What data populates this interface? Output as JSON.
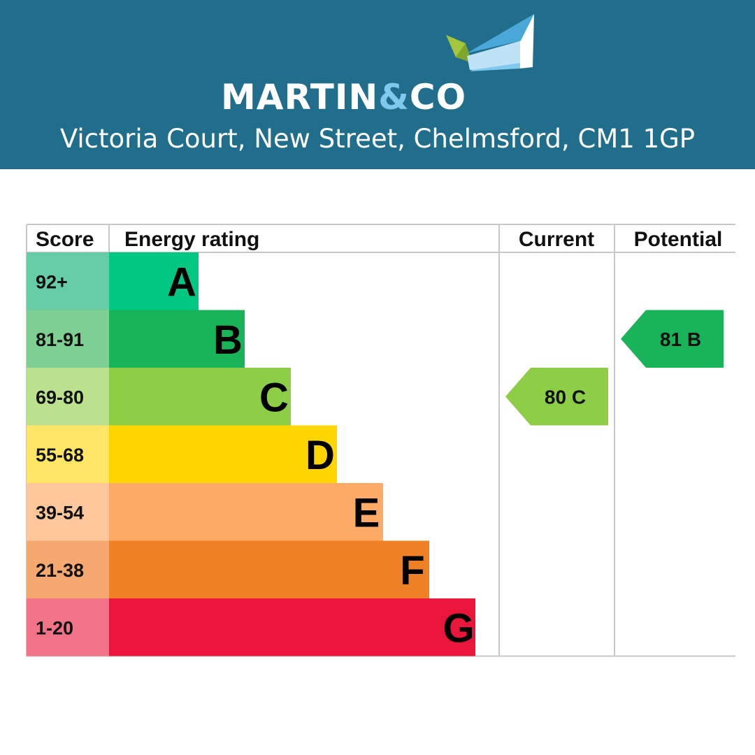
{
  "header": {
    "logo": {
      "part1": "MARTIN",
      "part2": "&",
      "part3": "CO"
    },
    "address": "Victoria Court, New Street, Chelmsford, CM1 1GP",
    "colors": {
      "banner": "#216e8c",
      "logo_accent": "#7fc8ee",
      "logo_leaf": "#a4c63d"
    }
  },
  "chart_data": {
    "type": "table",
    "columns": {
      "score": "Score",
      "rating": "Energy rating",
      "current": "Current",
      "potential": "Potential"
    },
    "bands": [
      {
        "score": "92+",
        "letter": "A",
        "color": "#00c781",
        "score_bg": "#66cda7"
      },
      {
        "score": "81-91",
        "letter": "B",
        "color": "#19b459",
        "score_bg": "#7dcf93"
      },
      {
        "score": "69-80",
        "letter": "C",
        "color": "#8dce46",
        "score_bg": "#bbe18e"
      },
      {
        "score": "55-68",
        "letter": "D",
        "color": "#ffd500",
        "score_bg": "#ffe666"
      },
      {
        "score": "39-54",
        "letter": "E",
        "color": "#fcaa65",
        "score_bg": "#fdc79b"
      },
      {
        "score": "21-38",
        "letter": "F",
        "color": "#ef8023",
        "score_bg": "#f5a971"
      },
      {
        "score": "1-20",
        "letter": "G",
        "color": "#e9153b",
        "score_bg": "#f27388"
      }
    ],
    "current": {
      "value": 80,
      "letter": "C",
      "label": "80  C",
      "color": "#8dce46"
    },
    "potential": {
      "value": 81,
      "letter": "B",
      "label": "81  B",
      "color": "#19b459"
    }
  }
}
